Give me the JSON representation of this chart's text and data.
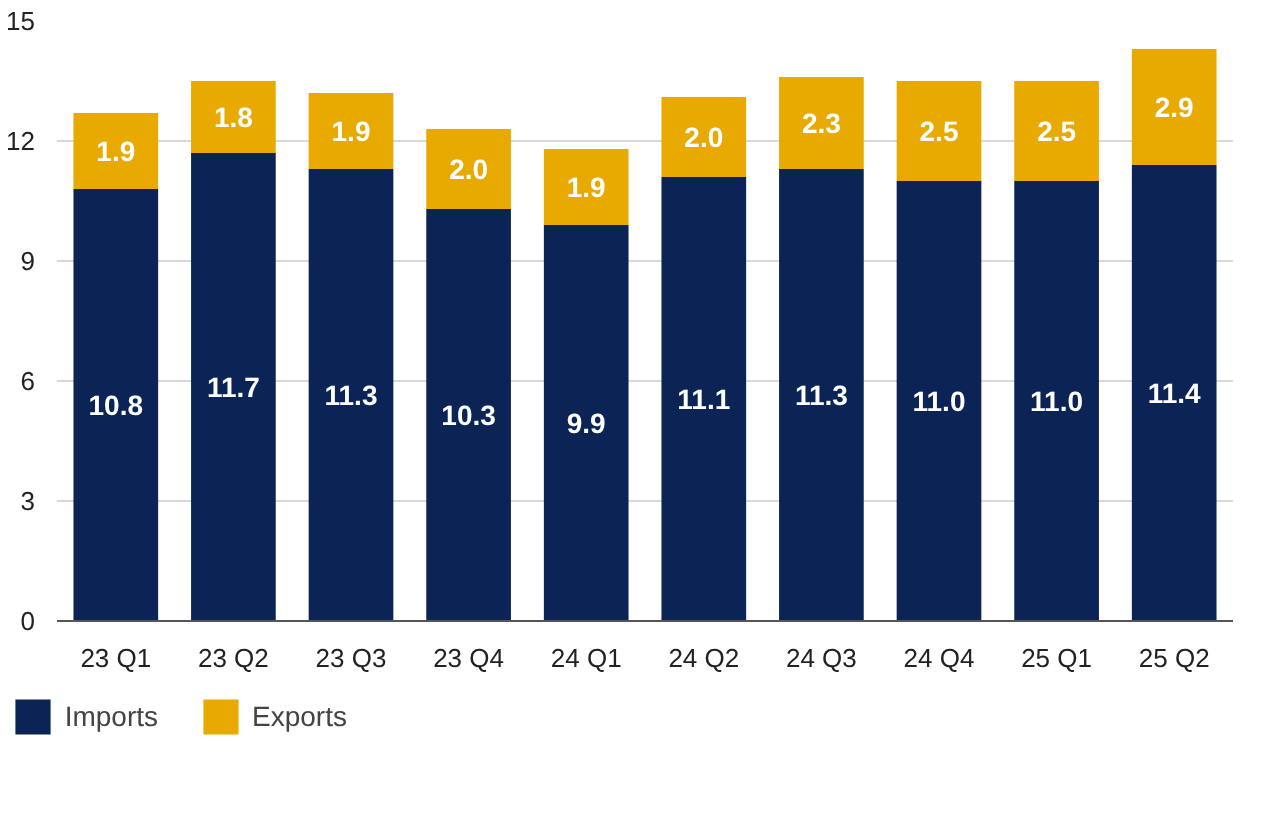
{
  "chart_data": {
    "type": "bar",
    "stacked": true,
    "categories": [
      "23 Q1",
      "23 Q2",
      "23 Q3",
      "23 Q4",
      "24 Q1",
      "24 Q2",
      "24 Q3",
      "24 Q4",
      "25 Q1",
      "25 Q2"
    ],
    "series": [
      {
        "name": "Imports",
        "color": "#0b2455",
        "values": [
          10.8,
          11.7,
          11.3,
          10.3,
          9.9,
          11.1,
          11.3,
          11.0,
          11.0,
          11.4
        ],
        "value_labels": [
          "10.8",
          "11.7",
          "11.3",
          "10.3",
          "9.9",
          "11.1",
          "11.3",
          "11.0",
          "11.0",
          "11.4"
        ]
      },
      {
        "name": "Exports",
        "color": "#e8a900",
        "values": [
          1.9,
          1.8,
          1.9,
          2.0,
          1.9,
          2.0,
          2.3,
          2.5,
          2.5,
          2.9
        ],
        "value_labels": [
          "1.9",
          "1.8",
          "1.9",
          "2.0",
          "1.9",
          "2.0",
          "2.3",
          "2.5",
          "2.5",
          "2.9"
        ]
      }
    ],
    "ylim": [
      0,
      15
    ],
    "yticks": [
      0,
      3,
      6,
      9,
      12,
      15
    ],
    "grid": "y",
    "legend": "bottom left"
  }
}
